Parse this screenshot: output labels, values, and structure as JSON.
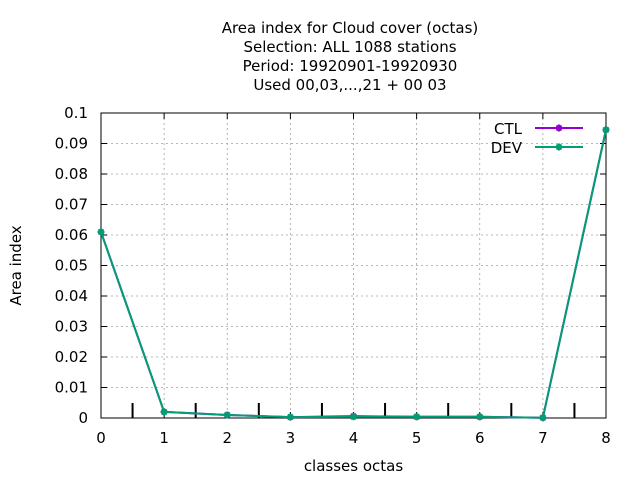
{
  "chart_data": {
    "type": "line",
    "title_lines": [
      "Area index  for Cloud cover (octas)",
      "Selection: ALL   1088 stations",
      "Period: 19920901-19920930",
      "Used  00,03,...,21  + 00 03"
    ],
    "xlabel": "classes octas",
    "ylabel": "Area index",
    "xlim": [
      0,
      8
    ],
    "ylim": [
      0,
      0.1
    ],
    "x_ticks": [
      "0",
      "1",
      "2",
      "3",
      "4",
      "5",
      "6",
      "7",
      "8"
    ],
    "y_ticks": [
      "0",
      "0.01",
      "0.02",
      "0.03",
      "0.04",
      "0.05",
      "0.06",
      "0.07",
      "0.08",
      "0.09",
      "0.1"
    ],
    "grid": true,
    "legend_position": "top-right",
    "x": [
      0,
      1,
      2,
      3,
      4,
      5,
      6,
      7,
      8
    ],
    "series": [
      {
        "name": "CTL",
        "color": "#9400d3",
        "values": [
          0.061,
          0.002,
          0.001,
          0.0003,
          0.0006,
          0.0004,
          0.0004,
          0.0001,
          0.0945
        ]
      },
      {
        "name": "DEV",
        "color": "#009e73",
        "values": [
          0.061,
          0.002,
          0.001,
          0.0003,
          0.0004,
          0.0004,
          0.0004,
          0.0001,
          0.0945
        ]
      }
    ],
    "bin_markers_x": [
      0.5,
      1.5,
      2.5,
      3.5,
      4.5,
      5.5,
      6.5,
      7.5
    ]
  }
}
